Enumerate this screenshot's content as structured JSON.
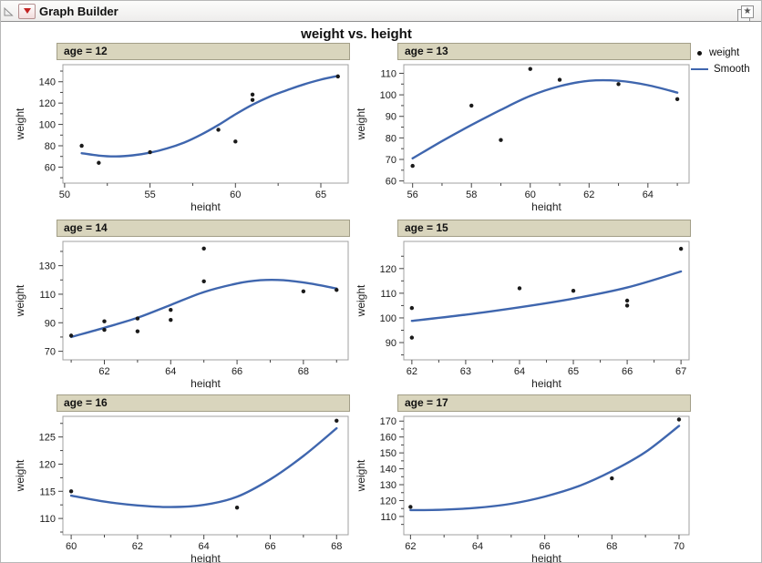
{
  "window": {
    "title": "Graph Builder"
  },
  "legend": {
    "items": [
      {
        "marker": "dot",
        "label": "weight"
      },
      {
        "marker": "line",
        "label": "Smooth"
      }
    ]
  },
  "colors": {
    "smooth_line": "#3f66ae",
    "point": "#1a1a1a",
    "panel_header_bg": "#d9d5bd",
    "frame_border": "#a0a0a0",
    "tick": "#444444"
  },
  "chart_data": {
    "type": "scatter",
    "title": "weight vs. height",
    "xlabel": "height",
    "ylabel": "weight",
    "legend": [
      "weight",
      "Smooth"
    ],
    "legend_position": "top-right",
    "grid": false,
    "facet_by": "age",
    "panels": [
      {
        "title": "age = 12",
        "xlim": [
          49.9,
          66.6
        ],
        "xticks": [
          50,
          55,
          60,
          65
        ],
        "ylim": [
          45,
          156
        ],
        "yticks": [
          60,
          80,
          100,
          120,
          140
        ],
        "points": [
          [
            51,
            80
          ],
          [
            52,
            64
          ],
          [
            55,
            74
          ],
          [
            59,
            95
          ],
          [
            60,
            84
          ],
          [
            61,
            123
          ],
          [
            61,
            128
          ],
          [
            66,
            145
          ]
        ],
        "smooth": [
          [
            51,
            73
          ],
          [
            52,
            70.8
          ],
          [
            53,
            70
          ],
          [
            54,
            71
          ],
          [
            55,
            73.5
          ],
          [
            56,
            77.5
          ],
          [
            57,
            83
          ],
          [
            58,
            90.5
          ],
          [
            59,
            99.5
          ],
          [
            60,
            109.5
          ],
          [
            61,
            118.5
          ],
          [
            62,
            126
          ],
          [
            63,
            132
          ],
          [
            64,
            137.5
          ],
          [
            65,
            142
          ],
          [
            66,
            145.5
          ]
        ]
      },
      {
        "title": "age = 13",
        "xlim": [
          55.7,
          65.4
        ],
        "xticks": [
          56,
          58,
          60,
          62,
          64
        ],
        "ylim": [
          59,
          114
        ],
        "yticks": [
          60,
          70,
          80,
          90,
          100,
          110
        ],
        "points": [
          [
            56,
            67
          ],
          [
            58,
            95
          ],
          [
            59,
            79
          ],
          [
            60,
            112
          ],
          [
            61,
            107
          ],
          [
            63,
            105
          ],
          [
            65,
            98
          ]
        ],
        "smooth": [
          [
            56,
            70.5
          ],
          [
            57,
            78.5
          ],
          [
            58,
            86
          ],
          [
            59,
            93
          ],
          [
            60,
            99.5
          ],
          [
            61,
            104
          ],
          [
            62,
            106.5
          ],
          [
            63,
            106.5
          ],
          [
            64,
            104.5
          ],
          [
            65,
            101
          ]
        ]
      },
      {
        "title": "age = 14",
        "xlim": [
          60.75,
          69.35
        ],
        "xticks": [
          62,
          64,
          66,
          68
        ],
        "ylim": [
          64,
          147
        ],
        "yticks": [
          70,
          90,
          110,
          130
        ],
        "points": [
          [
            61,
            81
          ],
          [
            62,
            85
          ],
          [
            62,
            91
          ],
          [
            63,
            84
          ],
          [
            63,
            93
          ],
          [
            64,
            92
          ],
          [
            64,
            99
          ],
          [
            65,
            119
          ],
          [
            65,
            142
          ],
          [
            68,
            112
          ],
          [
            69,
            113
          ]
        ],
        "smooth": [
          [
            61,
            80
          ],
          [
            62,
            86.5
          ],
          [
            63,
            93.5
          ],
          [
            64,
            102.5
          ],
          [
            65,
            111.5
          ],
          [
            66,
            117.5
          ],
          [
            66.7,
            119.8
          ],
          [
            67.4,
            119.8
          ],
          [
            68.2,
            117.5
          ],
          [
            69,
            114
          ]
        ]
      },
      {
        "title": "age = 15",
        "xlim": [
          61.85,
          67.15
        ],
        "xticks": [
          62,
          63,
          64,
          65,
          66,
          67
        ],
        "ylim": [
          83,
          131
        ],
        "yticks": [
          90,
          100,
          110,
          120
        ],
        "points": [
          [
            62,
            92
          ],
          [
            62,
            104
          ],
          [
            64,
            112
          ],
          [
            65,
            111
          ],
          [
            66,
            105
          ],
          [
            66,
            107
          ],
          [
            67,
            128
          ]
        ],
        "smooth": [
          [
            62,
            98.8
          ],
          [
            63,
            101.3
          ],
          [
            64,
            104.3
          ],
          [
            65,
            107.8
          ],
          [
            66,
            112.3
          ],
          [
            67,
            118.8
          ]
        ]
      },
      {
        "title": "age = 16",
        "xlim": [
          59.75,
          68.35
        ],
        "xticks": [
          60,
          62,
          64,
          66,
          68
        ],
        "ylim": [
          107,
          128.8
        ],
        "yticks": [
          110,
          115,
          120,
          125
        ],
        "points": [
          [
            60,
            115
          ],
          [
            65,
            112
          ],
          [
            68,
            128
          ]
        ],
        "smooth": [
          [
            60,
            114.2
          ],
          [
            61,
            113.1
          ],
          [
            62,
            112.4
          ],
          [
            63,
            112.1
          ],
          [
            64,
            112.5
          ],
          [
            65,
            114
          ],
          [
            66,
            117.2
          ],
          [
            67,
            121.5
          ],
          [
            68,
            126.6
          ]
        ]
      },
      {
        "title": "age = 17",
        "xlim": [
          61.8,
          70.3
        ],
        "xticks": [
          62,
          64,
          66,
          68,
          70
        ],
        "ylim": [
          98.5,
          173
        ],
        "yticks": [
          110,
          120,
          130,
          140,
          150,
          160,
          170
        ],
        "points": [
          [
            62,
            116
          ],
          [
            68,
            134
          ],
          [
            70,
            171
          ]
        ],
        "smooth": [
          [
            62,
            114
          ],
          [
            63,
            114.3
          ],
          [
            64,
            115.5
          ],
          [
            65,
            118
          ],
          [
            66,
            122.5
          ],
          [
            67,
            129
          ],
          [
            68,
            138.5
          ],
          [
            69,
            150.5
          ],
          [
            70,
            167
          ]
        ]
      }
    ]
  }
}
